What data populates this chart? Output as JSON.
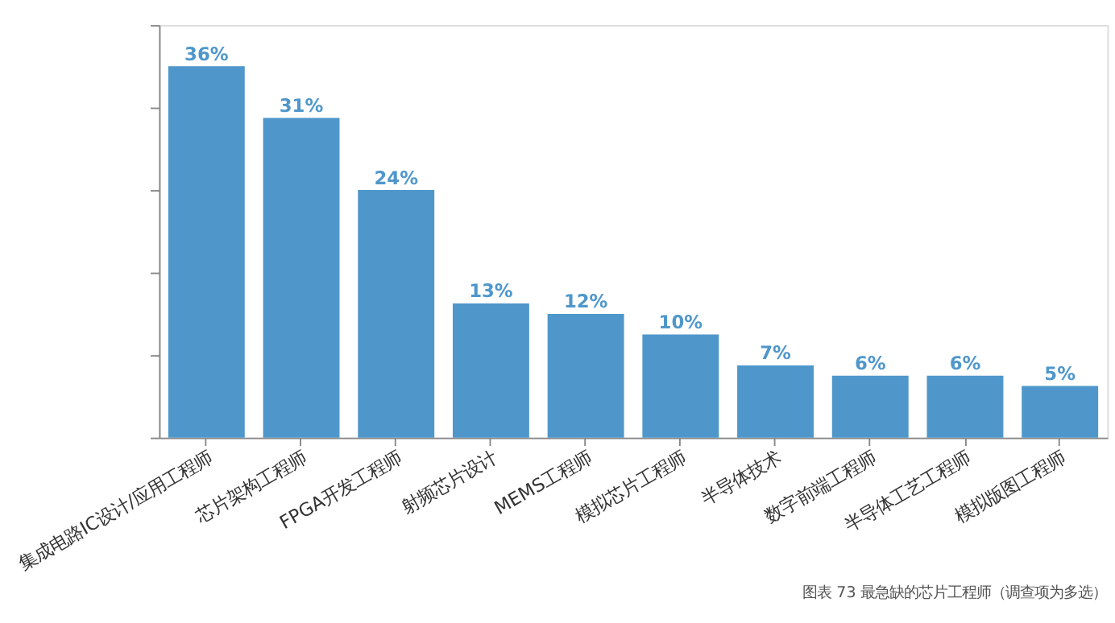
{
  "chart_data": {
    "type": "bar",
    "categories": [
      "集成电路IC设计/应用工程师",
      "芯片架构工程师",
      "FPGA开发工程师",
      "射频芯片设计",
      "MEMS工程师",
      "模拟芯片工程师",
      "半导体技术",
      "数字前端工程师",
      "半导体工艺工程师",
      "模拟版图工程师"
    ],
    "values": [
      36,
      31,
      24,
      13,
      12,
      10,
      7,
      6,
      6,
      5
    ],
    "value_labels": [
      "36%",
      "31%",
      "24%",
      "13%",
      "12%",
      "10%",
      "7%",
      "6%",
      "6%",
      "5%"
    ],
    "color": "#4f97cb",
    "ylim": [
      0,
      40
    ],
    "yticks": [
      {
        "value": 0,
        "label": null
      },
      {
        "value": 8,
        "label": null
      },
      {
        "value": 16,
        "label": null
      },
      {
        "value": 24,
        "label": null
      },
      {
        "value": 32,
        "label": null
      },
      {
        "value": 40,
        "label": null
      }
    ],
    "tick_labels": "x",
    "grid": false,
    "annotations": [
      "图表 73  最急缺的芯片工程师（调查项为多选）"
    ]
  }
}
